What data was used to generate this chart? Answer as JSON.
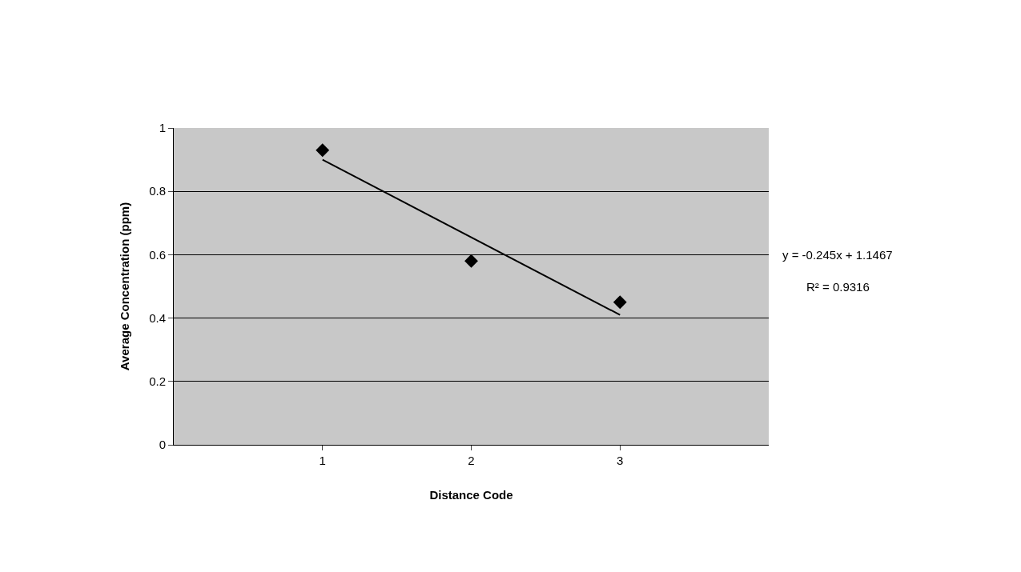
{
  "chart_data": {
    "type": "scatter",
    "xlabel": "Distance Code",
    "ylabel": "Average Concentration (ppm)",
    "x": [
      1,
      2,
      3
    ],
    "series": [
      {
        "color": "#000000",
        "values": [
          0.93,
          0.58,
          0.45
        ],
        "marker": "diamond"
      },
      {
        "type": "line",
        "color": "#000000",
        "x": [
          1,
          3
        ],
        "values": [
          0.9,
          0.41
        ],
        "marker": "none",
        "line_style": "solid"
      }
    ],
    "xlim": [
      0,
      4
    ],
    "xticks": [
      1,
      2,
      3
    ],
    "ylim": [
      0,
      1
    ],
    "yticks": [
      0,
      0.2,
      0.4,
      0.6,
      0.8,
      1
    ],
    "grid": "y",
    "annotations": [
      "y = -0.245x + 1.1467",
      "R² = 0.9316"
    ]
  }
}
